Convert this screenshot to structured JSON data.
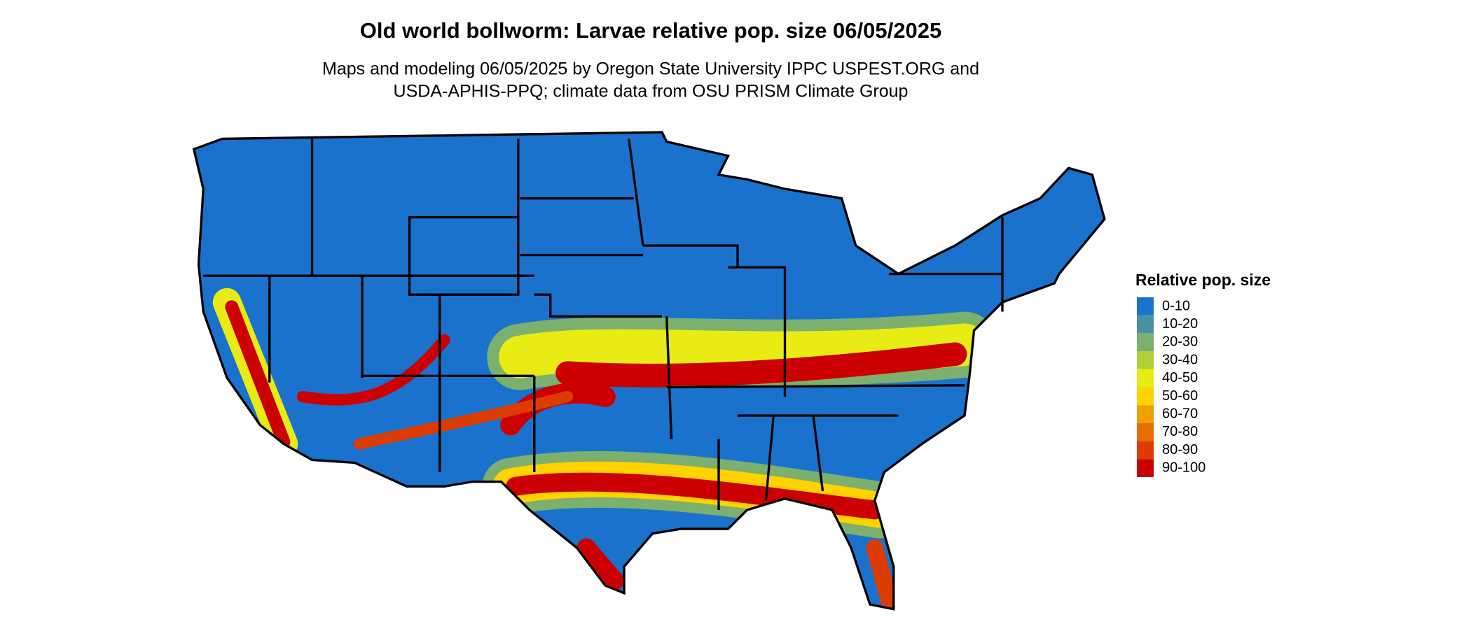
{
  "title": "Old world bollworm: Larvae relative pop. size 06/05/2025",
  "subtitle": [
    "Maps and modeling 06/05/2025 by Oregon State University IPPC USPEST.ORG and",
    "USDA-APHIS-PPQ; climate data from OSU PRISM Climate Group"
  ],
  "legend": {
    "title": "Relative pop. size",
    "items": [
      {
        "label": "0-10",
        "color": "#1a72cc"
      },
      {
        "label": "10-20",
        "color": "#4a90a4"
      },
      {
        "label": "20-30",
        "color": "#7bb06e"
      },
      {
        "label": "30-40",
        "color": "#aed03a"
      },
      {
        "label": "40-50",
        "color": "#e8ec14"
      },
      {
        "label": "50-60",
        "color": "#ffd200"
      },
      {
        "label": "60-70",
        "color": "#f0a000"
      },
      {
        "label": "70-80",
        "color": "#e66e00"
      },
      {
        "label": "80-90",
        "color": "#dd3c00"
      },
      {
        "label": "90-100",
        "color": "#cc0000"
      }
    ]
  }
}
